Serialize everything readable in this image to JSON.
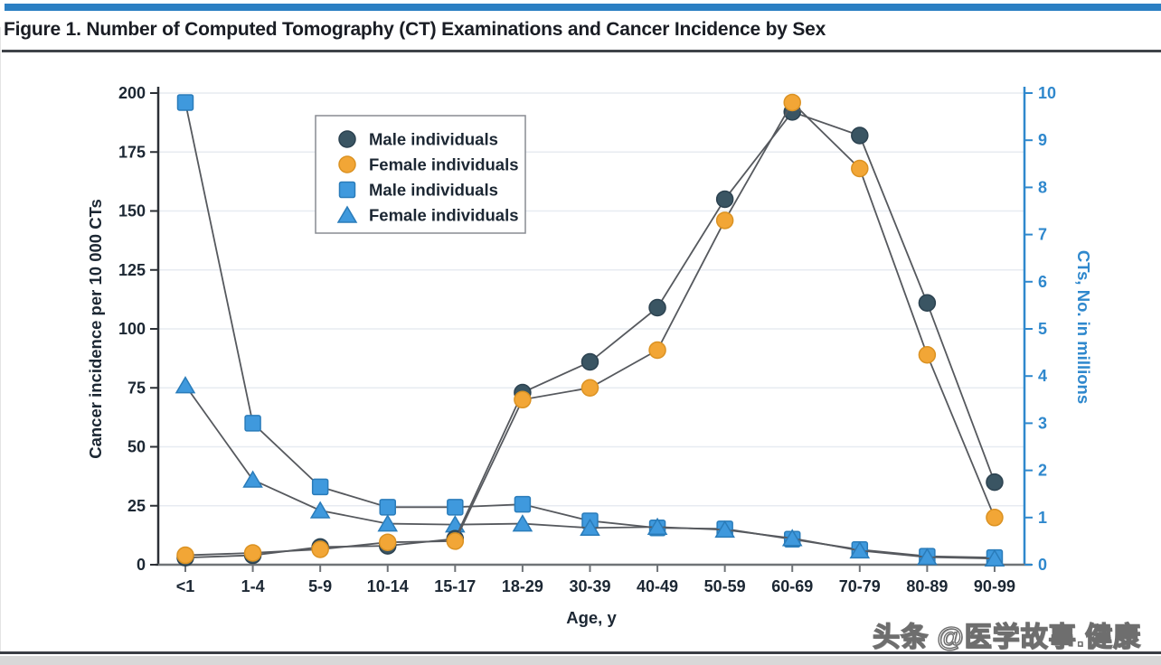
{
  "header": {
    "title": "Figure 1. Number of Computed Tomography (CT) Examinations and Cancer Incidence by Sex"
  },
  "watermark": {
    "text": "头条 @医学故事.健康"
  },
  "colors": {
    "accent_bar": "#2b7fc3",
    "ct_blue": "#3f99dd",
    "ct_blue_text": "#2f88cd",
    "orange": "#f2a636",
    "dark_slate": "#3a5563",
    "line": "#56595e",
    "grid": "#e7ebf1",
    "axis_dark": "#2c3036",
    "axis_gray": "#6f7377",
    "text_dark": "#1c2733",
    "legend_border": "#888c92"
  },
  "chart_data": {
    "type": "line",
    "title": "Number of CT Examinations and Cancer Incidence by Sex",
    "categories": [
      "<1",
      "1-4",
      "5-9",
      "10-14",
      "15-17",
      "18-29",
      "30-39",
      "40-49",
      "50-59",
      "60-69",
      "70-79",
      "80-89",
      "90-99"
    ],
    "xlabel": "Age, y",
    "grid": "horizontal",
    "legend_position": "top-left-inside",
    "left_axis": {
      "label": "Cancer incidence per 10 000 CTs",
      "min": 0,
      "max": 200,
      "tick_step": 25,
      "ticks": [
        "0",
        "25",
        "50",
        "75",
        "100",
        "125",
        "150",
        "175",
        "200"
      ]
    },
    "right_axis": {
      "label": "CTs, No. in millions",
      "min": 0,
      "max": 10,
      "tick_step": 1,
      "ticks": [
        "0",
        "1",
        "2",
        "3",
        "4",
        "5",
        "6",
        "7",
        "8",
        "9",
        "10"
      ]
    },
    "series": [
      {
        "id": "male-incidence",
        "name": "Male individuals",
        "axis": "left",
        "marker": "circle",
        "color": "#3a5563",
        "edge": "#2c4250",
        "values": [
          3,
          4,
          7.5,
          8,
          11,
          73,
          86,
          109,
          155,
          192,
          182,
          111,
          35
        ]
      },
      {
        "id": "female-incidence",
        "name": "Female individuals",
        "axis": "left",
        "marker": "circle",
        "color": "#f2a636",
        "edge": "#db9222",
        "values": [
          4,
          5,
          6.5,
          9.5,
          10,
          70,
          75,
          91,
          146,
          196,
          168,
          89,
          20
        ]
      },
      {
        "id": "male-cts",
        "name": "Male individuals",
        "axis": "right",
        "marker": "square",
        "color": "#3f99dd",
        "edge": "#2a7cba",
        "values": [
          9.8,
          3.0,
          1.65,
          1.22,
          1.22,
          1.28,
          0.93,
          0.78,
          0.76,
          0.54,
          0.32,
          0.18,
          0.15
        ]
      },
      {
        "id": "female-cts",
        "name": "Female individuals",
        "axis": "right",
        "marker": "triangle",
        "color": "#3f99dd",
        "edge": "#2a7cba",
        "values": [
          3.8,
          1.8,
          1.15,
          0.87,
          0.85,
          0.87,
          0.78,
          0.8,
          0.74,
          0.56,
          0.3,
          0.16,
          0.13
        ]
      }
    ]
  }
}
